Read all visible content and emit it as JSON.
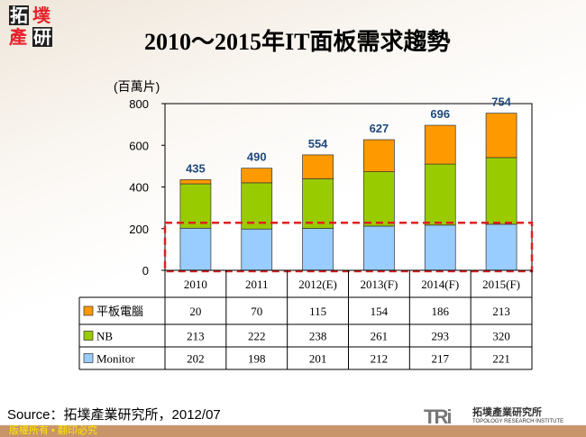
{
  "logo": {
    "text": "拓墣產研",
    "chars": [
      "拓",
      "墣",
      "產",
      "研"
    ]
  },
  "title": "2010～2015年IT面板需求趨勢",
  "chart_data": {
    "type": "bar",
    "stacked": true,
    "title": "2010～2015年IT面板需求趨勢",
    "ylabel": "(百萬片)",
    "ylim": [
      0,
      800
    ],
    "yticks": [
      0,
      200,
      400,
      600,
      800
    ],
    "categories": [
      "2010",
      "2011",
      "2012(E)",
      "2013(F)",
      "2014(F)",
      "2015(F)"
    ],
    "series": [
      {
        "name": "Monitor",
        "color": "#99CCFF",
        "values": [
          202,
          198,
          201,
          212,
          217,
          221
        ]
      },
      {
        "name": "NB",
        "color": "#99CC00",
        "values": [
          213,
          222,
          238,
          261,
          293,
          320
        ]
      },
      {
        "name": "平板電腦",
        "color": "#FF9900",
        "values": [
          20,
          70,
          115,
          154,
          186,
          213
        ]
      }
    ],
    "totals": [
      435,
      490,
      554,
      627,
      696,
      754
    ],
    "data_table": true,
    "highlight": "red dashed box around 0–200 range"
  },
  "source": "Source：拓墣產業研究所，2012/07",
  "footer": "版權所有 • 翻印必究",
  "brand": {
    "mark": "TRi",
    "name": "拓墣產業研究所",
    "sub": "TOPOLOGY RESEARCH INSTITUTE"
  }
}
